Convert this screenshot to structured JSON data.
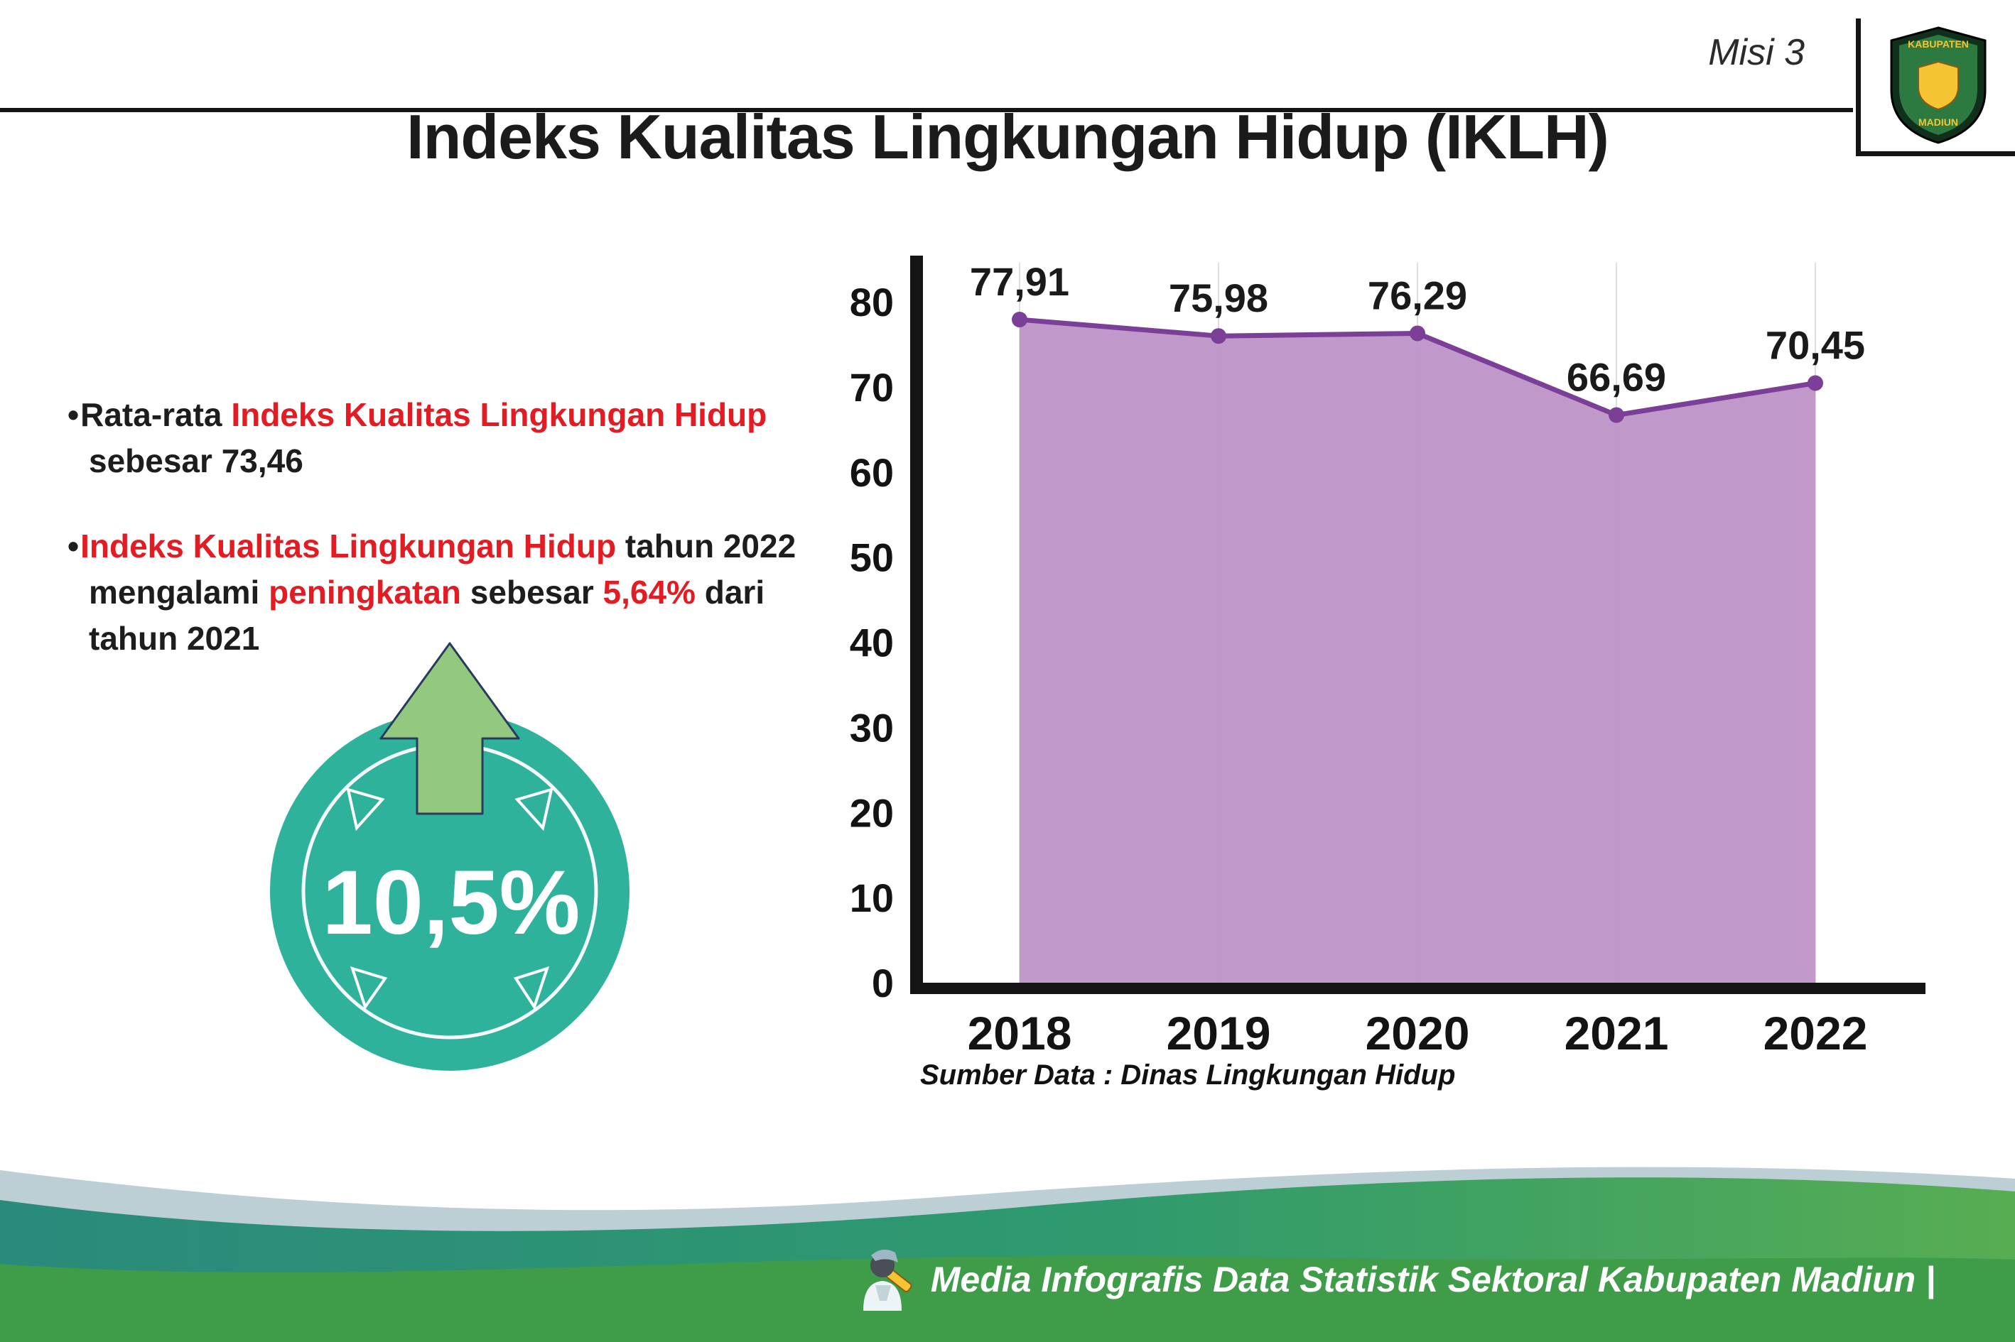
{
  "header": {
    "misi_label": "Misi 3",
    "title": "Indeks Kualitas Lingkungan Hidup (IKLH)",
    "logo_top_text": "KABUPATEN",
    "logo_bottom_text": "MADIUN"
  },
  "bullets": [
    {
      "segments": [
        {
          "text": "Rata-rata "
        },
        {
          "text": "Indeks Kualitas Lingkungan Hidup"
        },
        {
          "text": " sebesar 73,46"
        }
      ]
    },
    {
      "segments": [
        {
          "text": "Indeks Kualitas Lingkungan Hidup"
        },
        {
          "text": " tahun 2022 mengalami "
        },
        {
          "text": "peningkatan"
        },
        {
          "text": " sebesar "
        },
        {
          "text": "5,64%"
        },
        {
          "text": " dari tahun 2021"
        }
      ]
    }
  ],
  "badge": {
    "value": "10,5%"
  },
  "chart_data": {
    "type": "area",
    "categories": [
      "2018",
      "2019",
      "2020",
      "2021",
      "2022"
    ],
    "values": [
      77.91,
      75.98,
      76.29,
      66.69,
      70.45
    ],
    "value_labels": [
      "77,91",
      "75,98",
      "76,29",
      "66,69",
      "70,45"
    ],
    "yticks": [
      0,
      10,
      20,
      30,
      40,
      50,
      60,
      70,
      80
    ],
    "ylim": [
      0,
      80
    ],
    "grid": "vertical-light",
    "legend": "none",
    "line_color": "#7b3f98",
    "fill_color": "#bd92c7",
    "axis_color": "#141414",
    "source": "Sumber Data : Dinas Lingkungan Hidup"
  },
  "footer": {
    "credit": "Media Infografis Data Statistik Sektoral Kabupaten Madiun |"
  },
  "colors": {
    "accent_red": "#e31b23",
    "badge_teal": "#2fb29b",
    "arrow_green": "#92c97e",
    "footer_green": "#3f9c49",
    "footer_teal": "#2a8a7c",
    "wave_pale": "#bccfd4"
  }
}
